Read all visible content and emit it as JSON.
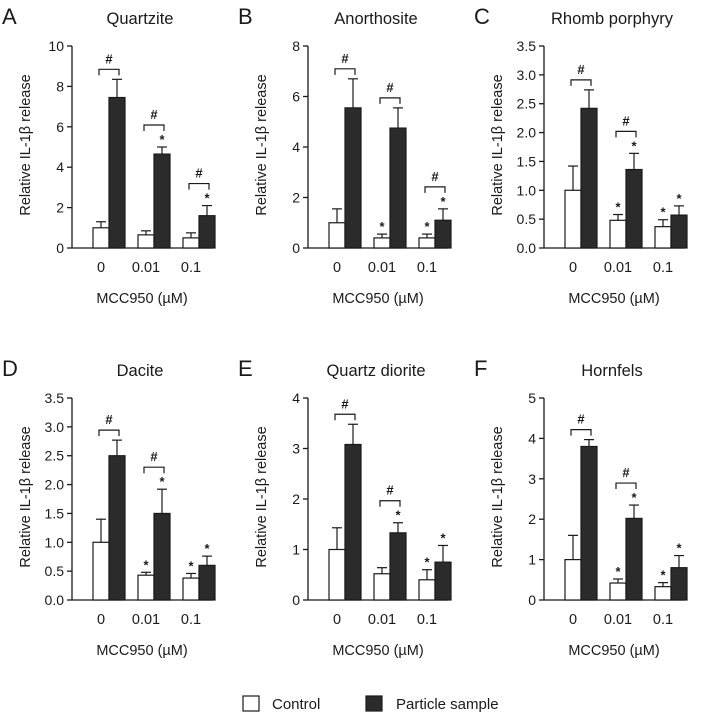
{
  "legend": {
    "control_label": "Control",
    "particle_label": "Particle sample",
    "control_color": "#ffffff",
    "particle_color": "#2b2b2b"
  },
  "chart_data": [
    {
      "panel": "A",
      "type": "bar",
      "title": "Quartzite",
      "categories": [
        "0",
        "0.01",
        "0.1"
      ],
      "xlabel": "MCC950 (µM)",
      "ylabel": "Relative IL-1β release",
      "ylim": [
        0,
        10
      ],
      "yticks": [
        "0",
        "2",
        "4",
        "6",
        "8",
        "10"
      ],
      "series": [
        {
          "name": "Control",
          "values": [
            1.0,
            0.65,
            0.5
          ],
          "errors": [
            0.3,
            0.2,
            0.25
          ],
          "marks": [
            "",
            "",
            ""
          ]
        },
        {
          "name": "Particle sample",
          "values": [
            7.45,
            4.65,
            1.6
          ],
          "errors": [
            0.9,
            0.35,
            0.5
          ],
          "marks": [
            "",
            "*",
            "*"
          ]
        }
      ],
      "brackets": [
        "#",
        "#",
        "#"
      ]
    },
    {
      "panel": "B",
      "type": "bar",
      "title": "Anorthosite",
      "categories": [
        "0",
        "0.01",
        "0.1"
      ],
      "xlabel": "MCC950 (µM)",
      "ylabel": "Relative IL-1β release",
      "ylim": [
        0,
        8
      ],
      "yticks": [
        "0",
        "2",
        "4",
        "6",
        "8"
      ],
      "series": [
        {
          "name": "Control",
          "values": [
            1.0,
            0.4,
            0.4
          ],
          "errors": [
            0.55,
            0.15,
            0.15
          ],
          "marks": [
            "",
            "*",
            "*"
          ]
        },
        {
          "name": "Particle sample",
          "values": [
            5.55,
            4.75,
            1.1
          ],
          "errors": [
            1.15,
            0.8,
            0.45
          ],
          "marks": [
            "",
            "",
            "*"
          ]
        }
      ],
      "brackets": [
        "#",
        "#",
        "#"
      ]
    },
    {
      "panel": "C",
      "type": "bar",
      "title": "Rhomb porphyry",
      "categories": [
        "0",
        "0.01",
        "0.1"
      ],
      "xlabel": "MCC950 (µM)",
      "ylabel": "Relative IL-1β release",
      "ylim": [
        0,
        3.5
      ],
      "yticks": [
        "0.0",
        "0.5",
        "1.0",
        "1.5",
        "2.0",
        "2.5",
        "3.0",
        "3.5"
      ],
      "series": [
        {
          "name": "Control",
          "values": [
            1.0,
            0.48,
            0.37
          ],
          "errors": [
            0.42,
            0.1,
            0.12
          ],
          "marks": [
            "",
            "*",
            "*"
          ]
        },
        {
          "name": "Particle sample",
          "values": [
            2.42,
            1.36,
            0.57
          ],
          "errors": [
            0.32,
            0.28,
            0.16
          ],
          "marks": [
            "",
            "*",
            "*"
          ]
        }
      ],
      "brackets": [
        "#",
        "#",
        ""
      ]
    },
    {
      "panel": "D",
      "type": "bar",
      "title": "Dacite",
      "categories": [
        "0",
        "0.01",
        "0.1"
      ],
      "xlabel": "MCC950 (µM)",
      "ylabel": "Relative IL-1β release",
      "ylim": [
        0,
        3.5
      ],
      "yticks": [
        "0.0",
        "0.5",
        "1.0",
        "1.5",
        "2.0",
        "2.5",
        "3.0",
        "3.5"
      ],
      "series": [
        {
          "name": "Control",
          "values": [
            1.0,
            0.43,
            0.38
          ],
          "errors": [
            0.4,
            0.05,
            0.08
          ],
          "marks": [
            "",
            "*",
            "*"
          ]
        },
        {
          "name": "Particle sample",
          "values": [
            2.5,
            1.5,
            0.6
          ],
          "errors": [
            0.27,
            0.42,
            0.16
          ],
          "marks": [
            "",
            "*",
            "*"
          ]
        }
      ],
      "brackets": [
        "#",
        "#",
        ""
      ]
    },
    {
      "panel": "E",
      "type": "bar",
      "title": "Quartz diorite",
      "categories": [
        "0",
        "0.01",
        "0.1"
      ],
      "xlabel": "MCC950 (µM)",
      "ylabel": "Relative IL-1β release",
      "ylim": [
        0,
        4
      ],
      "yticks": [
        "0",
        "1",
        "2",
        "3",
        "4"
      ],
      "series": [
        {
          "name": "Control",
          "values": [
            1.0,
            0.52,
            0.4
          ],
          "errors": [
            0.43,
            0.12,
            0.2
          ],
          "marks": [
            "",
            "",
            "*"
          ]
        },
        {
          "name": "Particle sample",
          "values": [
            3.08,
            1.33,
            0.75
          ],
          "errors": [
            0.4,
            0.2,
            0.33
          ],
          "marks": [
            "",
            "*",
            "*"
          ]
        }
      ],
      "brackets": [
        "#",
        "#",
        ""
      ]
    },
    {
      "panel": "F",
      "type": "bar",
      "title": "Hornfels",
      "categories": [
        "0",
        "0.01",
        "0.1"
      ],
      "xlabel": "MCC950 (µM)",
      "ylabel": "Relative IL-1β release",
      "ylim": [
        0,
        5
      ],
      "yticks": [
        "0",
        "1",
        "2",
        "3",
        "4",
        "5"
      ],
      "series": [
        {
          "name": "Control",
          "values": [
            1.0,
            0.42,
            0.33
          ],
          "errors": [
            0.6,
            0.1,
            0.1
          ],
          "marks": [
            "",
            "*",
            "*"
          ]
        },
        {
          "name": "Particle sample",
          "values": [
            3.8,
            2.02,
            0.8
          ],
          "errors": [
            0.17,
            0.33,
            0.3
          ],
          "marks": [
            "",
            "*",
            "*"
          ]
        }
      ],
      "brackets": [
        "#",
        "#",
        ""
      ]
    }
  ]
}
